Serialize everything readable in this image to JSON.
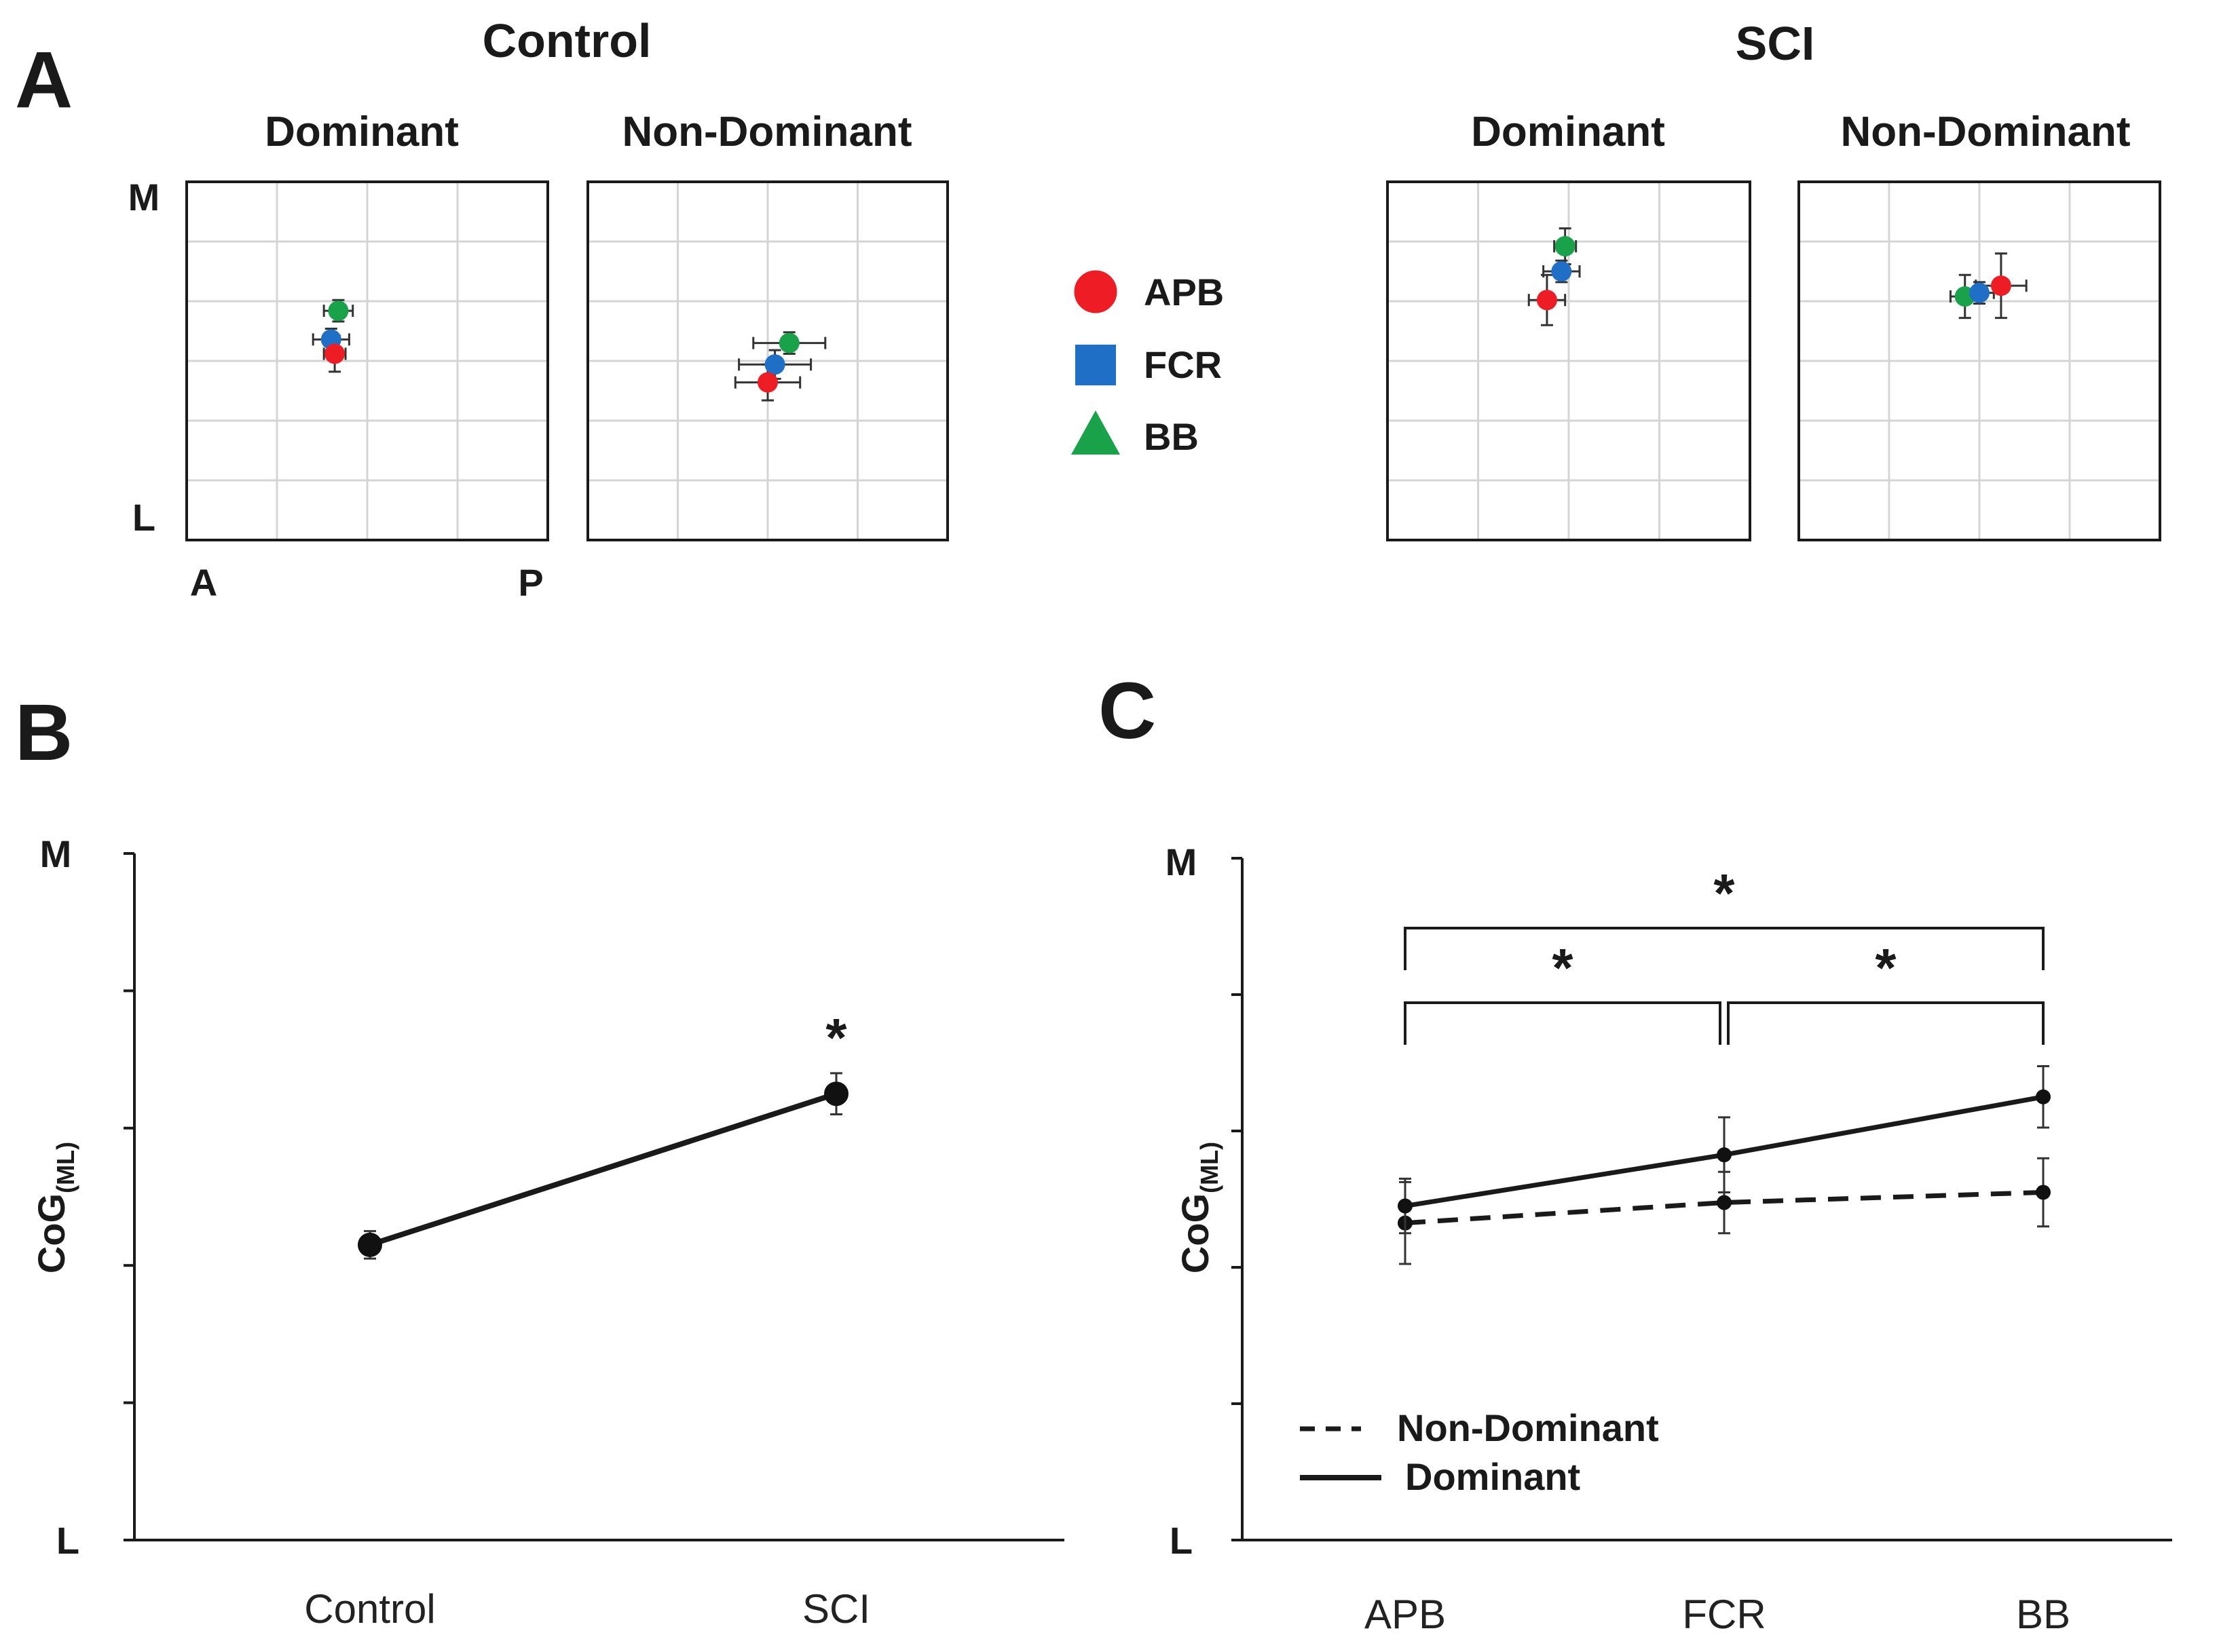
{
  "figure": {
    "panel_labels": [
      "A",
      "B",
      "C"
    ]
  },
  "legend_markers": [
    {
      "label": "APB",
      "shape": "circle",
      "color": "#ee1c24"
    },
    {
      "label": "FCR",
      "shape": "square",
      "color": "#1f6fc6"
    },
    {
      "label": "BB",
      "shape": "triangle",
      "color": "#1aa24a"
    }
  ],
  "chart_data": [
    {
      "id": "A",
      "type": "scatter",
      "description_units": "normalized map coordinates (0 = A/L, 1 = P/M)",
      "axis_letters": {
        "top": "M",
        "bottom": "L",
        "left": "A",
        "right": "P"
      },
      "groups": [
        {
          "title": "Control",
          "panels": [
            {
              "subtitle": "Dominant",
              "points": [
                {
                  "muscle": "APB",
                  "x": 0.41,
                  "y": 0.52,
                  "xerr": 0.03,
                  "yerr": 0.05
                },
                {
                  "muscle": "FCR",
                  "x": 0.4,
                  "y": 0.56,
                  "xerr": 0.05,
                  "yerr": 0.03
                },
                {
                  "muscle": "BB",
                  "x": 0.42,
                  "y": 0.64,
                  "xerr": 0.04,
                  "yerr": 0.03
                }
              ]
            },
            {
              "subtitle": "Non-Dominant",
              "points": [
                {
                  "muscle": "APB",
                  "x": 0.5,
                  "y": 0.44,
                  "xerr": 0.09,
                  "yerr": 0.05
                },
                {
                  "muscle": "FCR",
                  "x": 0.52,
                  "y": 0.49,
                  "xerr": 0.1,
                  "yerr": 0.04
                },
                {
                  "muscle": "BB",
                  "x": 0.56,
                  "y": 0.55,
                  "xerr": 0.1,
                  "yerr": 0.03
                }
              ]
            }
          ]
        },
        {
          "title": "SCI",
          "panels": [
            {
              "subtitle": "Dominant",
              "points": [
                {
                  "muscle": "APB",
                  "x": 0.44,
                  "y": 0.67,
                  "xerr": 0.05,
                  "yerr": 0.07
                },
                {
                  "muscle": "FCR",
                  "x": 0.48,
                  "y": 0.75,
                  "xerr": 0.05,
                  "yerr": 0.03
                },
                {
                  "muscle": "BB",
                  "x": 0.49,
                  "y": 0.82,
                  "xerr": 0.03,
                  "yerr": 0.05
                }
              ]
            },
            {
              "subtitle": "Non-Dominant",
              "points": [
                {
                  "muscle": "APB",
                  "x": 0.56,
                  "y": 0.71,
                  "xerr": 0.07,
                  "yerr": 0.09
                },
                {
                  "muscle": "FCR",
                  "x": 0.5,
                  "y": 0.69,
                  "xerr": 0.04,
                  "yerr": 0.03
                },
                {
                  "muscle": "BB",
                  "x": 0.46,
                  "y": 0.68,
                  "xerr": 0.04,
                  "yerr": 0.06
                }
              ]
            }
          ]
        }
      ]
    },
    {
      "id": "B",
      "type": "line",
      "categories": [
        "Control",
        "SCI"
      ],
      "series": [
        {
          "name": "CoG",
          "values": [
            0.43,
            0.65
          ],
          "errors": [
            0.02,
            0.03
          ]
        }
      ],
      "ylabel": "CoG",
      "ylabel_sub": "(ML)",
      "ylim": [
        0,
        1
      ],
      "ytick_count": 6,
      "y_axis_letters": {
        "top": "M",
        "bottom": "L"
      },
      "annotations": [
        {
          "text": "*",
          "category": "SCI"
        }
      ]
    },
    {
      "id": "C",
      "type": "line",
      "categories": [
        "APB",
        "FCR",
        "BB"
      ],
      "series": [
        {
          "name": "Non-Dominant",
          "style": "dashed",
          "values": [
            0.465,
            0.495,
            0.51
          ],
          "errors": [
            0.06,
            0.045,
            0.05
          ]
        },
        {
          "name": "Dominant",
          "style": "solid",
          "values": [
            0.49,
            0.565,
            0.65
          ],
          "errors": [
            0.04,
            0.055,
            0.045
          ]
        }
      ],
      "ylabel": "CoG",
      "ylabel_sub": "(ML)",
      "ylim": [
        0,
        1
      ],
      "ytick_count": 6,
      "y_axis_letters": {
        "top": "M",
        "bottom": "L"
      },
      "legend": [
        "Non-Dominant",
        "Dominant"
      ],
      "legend_position": "bottom-left",
      "significance_brackets": [
        {
          "from": "APB",
          "to": "FCR",
          "text": "*",
          "level": 1
        },
        {
          "from": "FCR",
          "to": "BB",
          "text": "*",
          "level": 1
        },
        {
          "from": "APB",
          "to": "BB",
          "text": "*",
          "level": 2
        }
      ]
    }
  ]
}
